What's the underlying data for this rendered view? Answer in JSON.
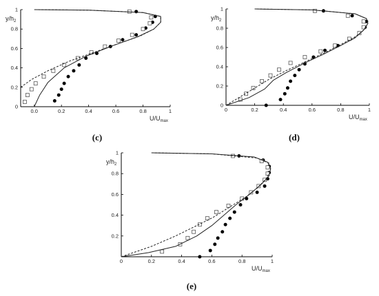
{
  "chart_data": [
    {
      "panel_label": "(c)",
      "type": "scatter",
      "xlabel": {
        "main": "U/U",
        "sub": "max"
      },
      "ylabel": {
        "main": "y/h",
        "sub": "2"
      },
      "xlim": [
        -0.1,
        1.0
      ],
      "ylim": [
        0,
        1.0
      ],
      "x_ticks": [
        "0.0",
        "0.2",
        "0.4",
        "0.6",
        "0.8",
        "1"
      ],
      "y_ticks": [
        "0",
        "0.2",
        "0.4",
        "0.6",
        "0.8",
        "1"
      ],
      "series": [
        {
          "style": "filled-circle",
          "points": [
            [
              0.15,
              0.06
            ],
            [
              0.18,
              0.12
            ],
            [
              0.2,
              0.18
            ],
            [
              0.22,
              0.24
            ],
            [
              0.25,
              0.31
            ],
            [
              0.29,
              0.37
            ],
            [
              0.33,
              0.43
            ],
            [
              0.38,
              0.5
            ],
            [
              0.46,
              0.55
            ],
            [
              0.56,
              0.62
            ],
            [
              0.65,
              0.69
            ],
            [
              0.75,
              0.74
            ],
            [
              0.82,
              0.81
            ],
            [
              0.87,
              0.87
            ],
            [
              0.89,
              0.93
            ],
            [
              0.75,
              0.98
            ]
          ]
        },
        {
          "style": "open-square",
          "points": [
            [
              -0.07,
              0.05
            ],
            [
              -0.05,
              0.12
            ],
            [
              -0.02,
              0.18
            ],
            [
              0.01,
              0.24
            ],
            [
              0.07,
              0.31
            ],
            [
              0.14,
              0.37
            ],
            [
              0.22,
              0.43
            ],
            [
              0.32,
              0.5
            ],
            [
              0.42,
              0.56
            ],
            [
              0.52,
              0.62
            ],
            [
              0.62,
              0.68
            ],
            [
              0.72,
              0.74
            ],
            [
              0.8,
              0.8
            ],
            [
              0.85,
              0.86
            ],
            [
              0.86,
              0.92
            ],
            [
              0.7,
              0.98
            ]
          ]
        },
        {
          "style": "solid-line",
          "points": [
            [
              0.0,
              0.0
            ],
            [
              0.04,
              0.12
            ],
            [
              0.1,
              0.25
            ],
            [
              0.22,
              0.4
            ],
            [
              0.38,
              0.52
            ],
            [
              0.58,
              0.63
            ],
            [
              0.76,
              0.72
            ],
            [
              0.88,
              0.8
            ],
            [
              0.93,
              0.87
            ],
            [
              0.93,
              0.93
            ],
            [
              0.8,
              0.97
            ],
            [
              0.4,
              0.995
            ],
            [
              0.0,
              1.0
            ]
          ]
        },
        {
          "style": "dashed-line",
          "points": [
            [
              -0.1,
              0.2
            ],
            [
              -0.02,
              0.28
            ],
            [
              0.1,
              0.37
            ],
            [
              0.26,
              0.47
            ],
            [
              0.44,
              0.56
            ],
            [
              0.62,
              0.65
            ],
            [
              0.78,
              0.73
            ],
            [
              0.88,
              0.8
            ],
            [
              0.93,
              0.87
            ],
            [
              0.93,
              0.93
            ],
            [
              0.8,
              0.97
            ],
            [
              0.4,
              0.995
            ],
            [
              0.0,
              1.0
            ]
          ]
        }
      ]
    },
    {
      "panel_label": "(d)",
      "type": "scatter",
      "xlabel": {
        "main": "U/U",
        "sub": "max"
      },
      "ylabel": {
        "main": "y/h",
        "sub": "2"
      },
      "xlim": [
        0,
        1.0
      ],
      "ylim": [
        0,
        1.0
      ],
      "x_ticks": [
        "0",
        "0.2",
        "0.4",
        "0.6",
        "0.8",
        "1"
      ],
      "y_ticks": [
        "0",
        "0.2",
        "0.4",
        "0.6",
        "0.8",
        "1"
      ],
      "series": [
        {
          "style": "filled-circle",
          "points": [
            [
              0.28,
              0.0
            ],
            [
              0.38,
              0.06
            ],
            [
              0.41,
              0.12
            ],
            [
              0.43,
              0.18
            ],
            [
              0.45,
              0.25
            ],
            [
              0.48,
              0.31
            ],
            [
              0.51,
              0.37
            ],
            [
              0.55,
              0.43
            ],
            [
              0.61,
              0.5
            ],
            [
              0.69,
              0.57
            ],
            [
              0.78,
              0.62
            ],
            [
              0.86,
              0.69
            ],
            [
              0.93,
              0.75
            ],
            [
              0.97,
              0.81
            ],
            [
              0.98,
              0.87
            ],
            [
              0.88,
              0.93
            ],
            [
              0.68,
              0.98
            ]
          ]
        },
        {
          "style": "open-square",
          "points": [
            [
              0.1,
              0.06
            ],
            [
              0.14,
              0.12
            ],
            [
              0.19,
              0.18
            ],
            [
              0.25,
              0.25
            ],
            [
              0.31,
              0.31
            ],
            [
              0.37,
              0.37
            ],
            [
              0.45,
              0.44
            ],
            [
              0.55,
              0.5
            ],
            [
              0.66,
              0.56
            ],
            [
              0.76,
              0.62
            ],
            [
              0.86,
              0.69
            ],
            [
              0.93,
              0.75
            ],
            [
              0.96,
              0.81
            ],
            [
              0.96,
              0.87
            ],
            [
              0.85,
              0.93
            ],
            [
              0.62,
              0.98
            ]
          ]
        },
        {
          "style": "solid-line",
          "points": [
            [
              0.0,
              0.0
            ],
            [
              0.16,
              0.08
            ],
            [
              0.27,
              0.17
            ],
            [
              0.33,
              0.26
            ],
            [
              0.42,
              0.34
            ],
            [
              0.55,
              0.44
            ],
            [
              0.68,
              0.53
            ],
            [
              0.8,
              0.62
            ],
            [
              0.9,
              0.7
            ],
            [
              0.96,
              0.78
            ],
            [
              0.99,
              0.85
            ],
            [
              0.98,
              0.9
            ],
            [
              0.9,
              0.95
            ],
            [
              0.6,
              0.99
            ],
            [
              0.2,
              1.0
            ]
          ]
        },
        {
          "style": "dashed-line",
          "points": [
            [
              0.0,
              0.0
            ],
            [
              0.09,
              0.08
            ],
            [
              0.19,
              0.17
            ],
            [
              0.3,
              0.27
            ],
            [
              0.42,
              0.36
            ],
            [
              0.55,
              0.45
            ],
            [
              0.68,
              0.54
            ],
            [
              0.8,
              0.63
            ],
            [
              0.9,
              0.71
            ],
            [
              0.96,
              0.78
            ],
            [
              0.99,
              0.85
            ],
            [
              0.98,
              0.9
            ],
            [
              0.9,
              0.95
            ],
            [
              0.6,
              0.99
            ],
            [
              0.2,
              1.0
            ]
          ]
        }
      ]
    },
    {
      "panel_label": "(e)",
      "type": "scatter",
      "xlabel": {
        "main": "U/U",
        "sub": "max"
      },
      "ylabel": {
        "main": "y/h",
        "sub": "2"
      },
      "xlim": [
        0,
        1.0
      ],
      "ylim": [
        0,
        1.0
      ],
      "x_ticks": [
        "0",
        "0.2",
        "0.4",
        "0.6",
        "0.8",
        "1"
      ],
      "y_ticks": [
        "0.2",
        "0.4",
        "0.6",
        "0.8",
        "1"
      ],
      "series": [
        {
          "style": "filled-circle",
          "points": [
            [
              0.52,
              0.0
            ],
            [
              0.59,
              0.06
            ],
            [
              0.62,
              0.12
            ],
            [
              0.64,
              0.18
            ],
            [
              0.67,
              0.24
            ],
            [
              0.69,
              0.31
            ],
            [
              0.72,
              0.37
            ],
            [
              0.75,
              0.43
            ],
            [
              0.79,
              0.5
            ],
            [
              0.83,
              0.56
            ],
            [
              0.9,
              0.62
            ],
            [
              0.95,
              0.68
            ],
            [
              0.97,
              0.75
            ],
            [
              0.98,
              0.81
            ],
            [
              0.98,
              0.87
            ],
            [
              0.94,
              0.93
            ],
            [
              0.78,
              0.97
            ]
          ]
        },
        {
          "style": "open-square",
          "points": [
            [
              0.27,
              0.05
            ],
            [
              0.39,
              0.12
            ],
            [
              0.44,
              0.18
            ],
            [
              0.48,
              0.24
            ],
            [
              0.52,
              0.31
            ],
            [
              0.57,
              0.37
            ],
            [
              0.63,
              0.43
            ],
            [
              0.71,
              0.49
            ],
            [
              0.8,
              0.56
            ],
            [
              0.86,
              0.62
            ],
            [
              0.91,
              0.68
            ],
            [
              0.95,
              0.74
            ],
            [
              0.97,
              0.8
            ],
            [
              0.97,
              0.86
            ],
            [
              0.93,
              0.92
            ],
            [
              0.74,
              0.97
            ]
          ]
        },
        {
          "style": "solid-line",
          "points": [
            [
              0.0,
              0.0
            ],
            [
              0.18,
              0.04
            ],
            [
              0.36,
              0.1
            ],
            [
              0.5,
              0.2
            ],
            [
              0.6,
              0.3
            ],
            [
              0.68,
              0.4
            ],
            [
              0.76,
              0.5
            ],
            [
              0.85,
              0.6
            ],
            [
              0.93,
              0.7
            ],
            [
              0.98,
              0.78
            ],
            [
              0.99,
              0.85
            ],
            [
              0.97,
              0.91
            ],
            [
              0.88,
              0.96
            ],
            [
              0.6,
              0.99
            ],
            [
              0.2,
              1.0
            ]
          ]
        },
        {
          "style": "dashed-line",
          "points": [
            [
              0.0,
              0.0
            ],
            [
              0.2,
              0.1
            ],
            [
              0.36,
              0.2
            ],
            [
              0.5,
              0.3
            ],
            [
              0.61,
              0.38
            ],
            [
              0.72,
              0.48
            ],
            [
              0.82,
              0.57
            ],
            [
              0.9,
              0.66
            ],
            [
              0.96,
              0.75
            ],
            [
              0.99,
              0.83
            ],
            [
              0.98,
              0.9
            ],
            [
              0.9,
              0.95
            ],
            [
              0.6,
              0.99
            ],
            [
              0.2,
              1.0
            ]
          ]
        }
      ]
    }
  ]
}
